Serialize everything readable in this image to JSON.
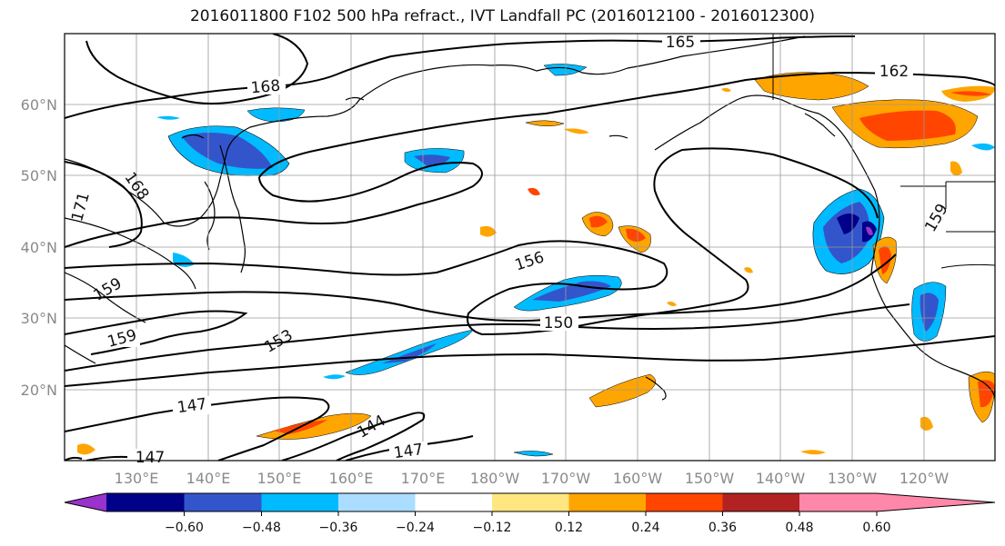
{
  "title": "2016011800 F102 500 hPa refract., IVT Landfall PC (2016012100 - 2016012300)",
  "map": {
    "longitude_labels": [
      "130°E",
      "140°E",
      "150°E",
      "160°E",
      "170°E",
      "180°W",
      "170°W",
      "160°W",
      "150°W",
      "140°W",
      "130°W",
      "120°W"
    ],
    "latitude_labels": [
      "20°N",
      "30°N",
      "40°N",
      "50°N",
      "60°N"
    ],
    "contour_labels": [
      "165",
      "168",
      "171",
      "168",
      "162",
      "159",
      "156",
      "159",
      "150",
      "159",
      "153",
      "147",
      "144",
      "147",
      "147"
    ]
  },
  "colorbar": {
    "tick_labels": [
      "−0.60",
      "−0.48",
      "−0.36",
      "−0.24",
      "−0.12",
      "0.12",
      "0.24",
      "0.36",
      "0.48",
      "0.60"
    ],
    "colors": [
      "#9933cc",
      "#000088",
      "#3355cc",
      "#00bbff",
      "#aaddff",
      "#ffffff",
      "#ffe680",
      "#ffa500",
      "#ff4500",
      "#b22222",
      "#ff88aa"
    ]
  },
  "colors": {
    "grid": "#9a9a9a",
    "contour": "#000000",
    "coast": "#000000"
  }
}
